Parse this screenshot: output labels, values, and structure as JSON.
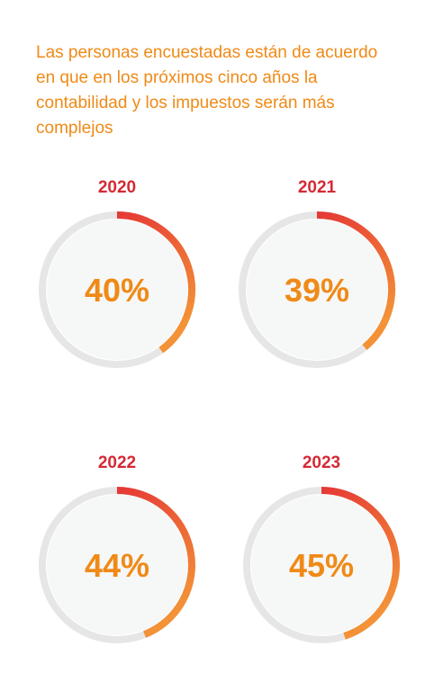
{
  "headline": "Las personas encuestadas están de acuerdo en que en los próximos cinco años la contabilidad y los impuestos serán más complejos",
  "colors": {
    "headline": "#ef8a17",
    "year": "#d42a35",
    "value_text": "#ef8a17",
    "track": "#e6e6e6",
    "inner_fill": "#f6f7f7",
    "arc_gradient_start": "#e53935",
    "arc_gradient_end": "#f39237"
  },
  "chart_data": [
    {
      "type": "pie",
      "title": "2020",
      "values": [
        40,
        60
      ],
      "value_label": "40%"
    },
    {
      "type": "pie",
      "title": "2021",
      "values": [
        39,
        61
      ],
      "value_label": "39%"
    },
    {
      "type": "pie",
      "title": "2022",
      "values": [
        44,
        56
      ],
      "value_label": "44%"
    },
    {
      "type": "pie",
      "title": "2023",
      "values": [
        45,
        55
      ],
      "value_label": "45%"
    }
  ]
}
